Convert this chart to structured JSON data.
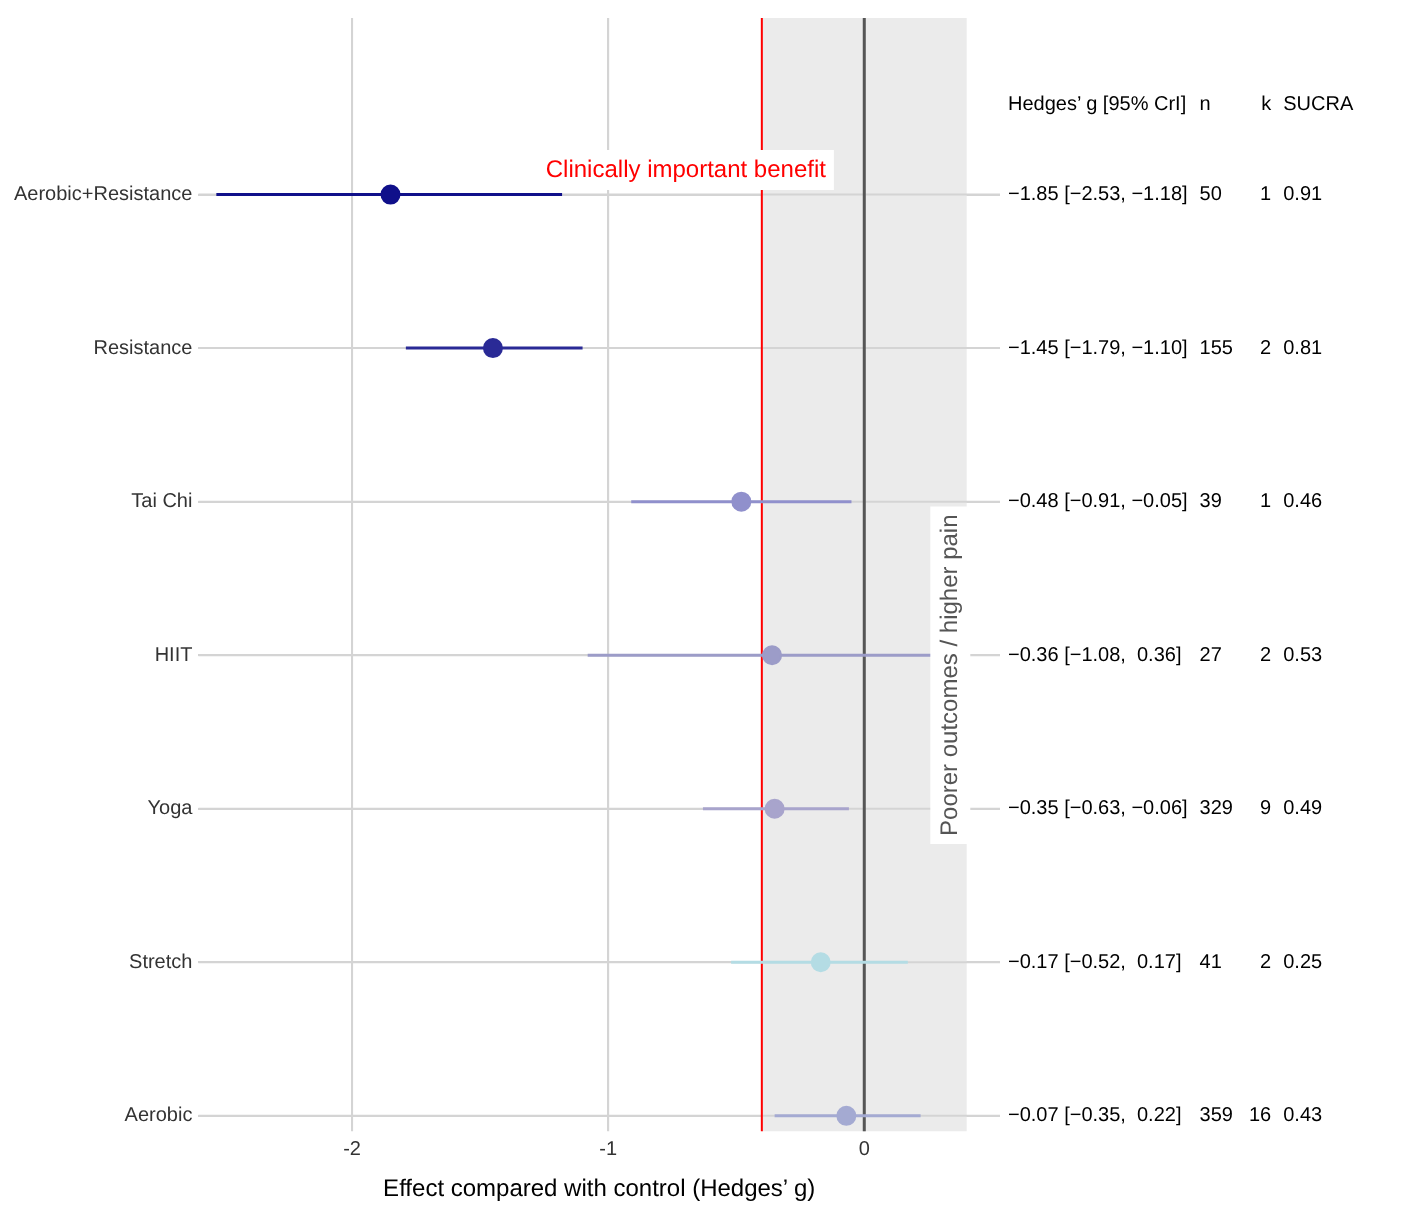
{
  "chart_data": {
    "type": "scatter",
    "orientation": "horizontal",
    "categories": [
      "Aerobic+Resistance",
      "Resistance",
      "Tai Chi",
      "HIIT",
      "Yoga",
      "Stretch",
      "Aerobic"
    ],
    "values": [
      -1.85,
      -1.45,
      -0.48,
      -0.36,
      -0.35,
      -0.17,
      -0.07
    ],
    "errors": [
      [
        -2.53,
        -1.18
      ],
      [
        -1.79,
        -1.1
      ],
      [
        -0.91,
        -0.05
      ],
      [
        -1.08,
        0.36
      ],
      [
        -0.63,
        -0.06
      ],
      [
        -0.52,
        0.17
      ],
      [
        -0.35,
        0.22
      ]
    ],
    "colors": [
      "#10108a",
      "#2a2a96",
      "#9090cc",
      "#9c9cc8",
      "#a8a4cc",
      "#b4dce4",
      "#a4aad2"
    ],
    "value_labels": [
      "−1.85 [−2.53, −1.18]",
      "−1.45 [−1.79, −1.10]",
      "−0.48 [−0.91, −0.05]",
      "−0.36 [−1.08,  0.36]",
      "−0.35 [−0.63, −0.06]",
      "−0.17 [−0.52,  0.17]",
      "−0.07 [−0.35,  0.22]"
    ],
    "annotations": [
      "Hedges’ g [95% CrI]",
      "n",
      "k",
      "SUCRA",
      "50",
      "1",
      "0.91",
      "155",
      "2",
      "0.81",
      "39",
      "1",
      "0.46",
      "27",
      "2",
      "0.53",
      "329",
      "9",
      "0.49",
      "41",
      "2",
      "0.25",
      "359",
      "16",
      "0.43"
    ],
    "xlabel": "Effect compared with control (Hedges’ g)",
    "xlim": [
      -2.6,
      0.53
    ],
    "xticks": [
      -2,
      -1,
      0
    ],
    "ref_lines": [
      {
        "axis": "x",
        "value": -0.4,
        "label": "Clinically important benefit",
        "color": "#ff0000"
      },
      {
        "axis": "x",
        "value": 0,
        "color": "#555555"
      }
    ],
    "bands": [
      {
        "axis": "x",
        "from": -0.4,
        "to": 0.4,
        "label": "Poorer outcomes / higher pain",
        "color": "#ebebeb"
      }
    ],
    "grid": true,
    "legend": false,
    "marker": "circle"
  }
}
